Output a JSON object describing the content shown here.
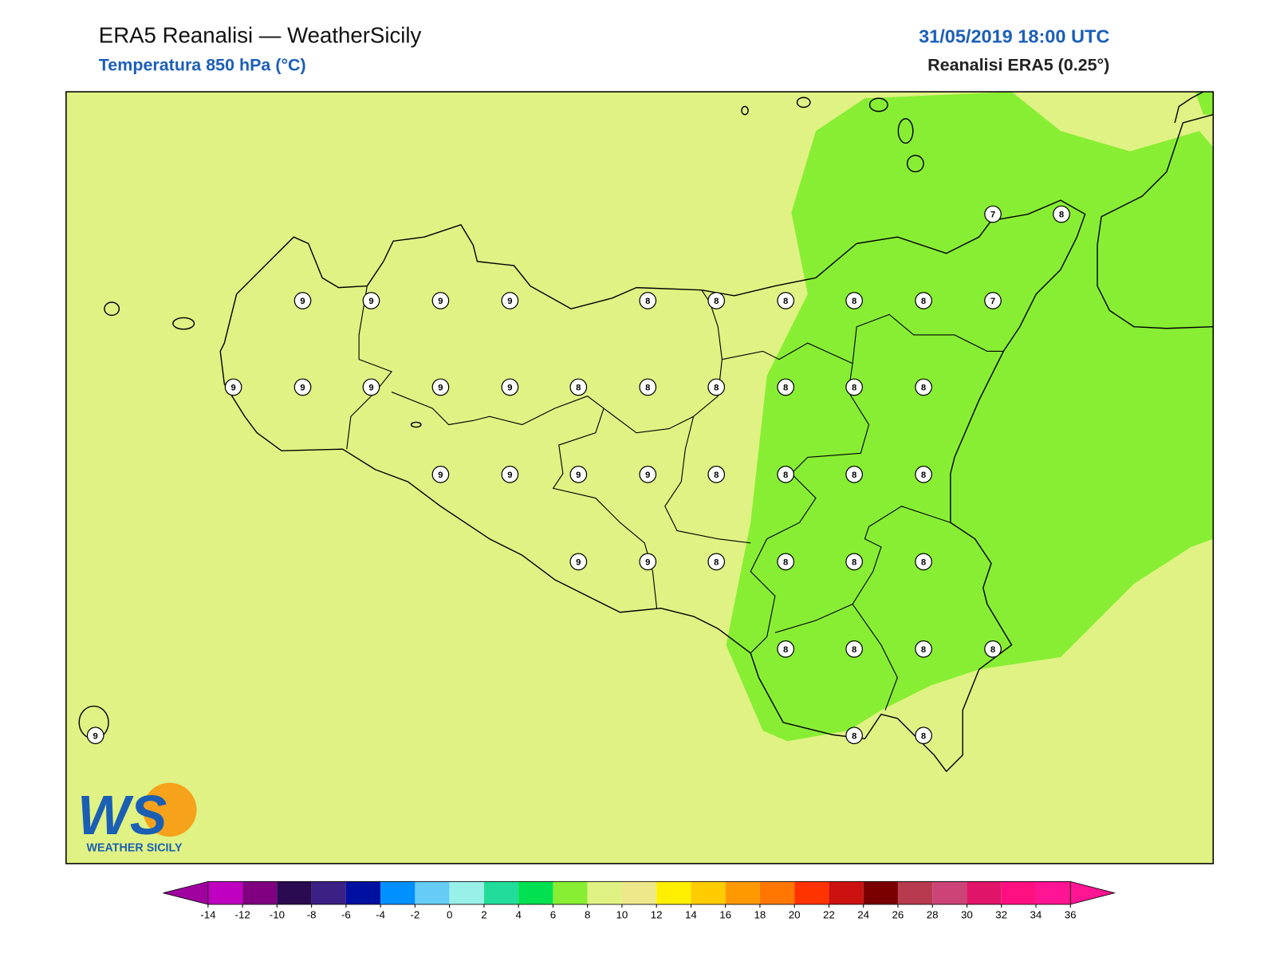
{
  "header": {
    "title": "ERA5 Reanalisi — WeatherSicily",
    "subtitle": "Temperatura 850 hPa (°C)",
    "datetime": "31/05/2019 18:00 UTC",
    "source": "Reanalisi ERA5 (0.25°)"
  },
  "map": {
    "background": "#e0f283",
    "region_fill": "#88ee33",
    "stations": [
      9,
      9,
      9,
      9,
      8,
      8,
      8,
      8,
      8,
      7,
      7,
      8,
      9,
      9,
      9,
      9,
      9,
      8,
      8,
      8,
      8,
      8,
      8,
      9,
      9,
      9,
      9,
      8,
      8,
      8,
      8,
      9,
      9,
      8,
      8,
      8,
      8,
      8,
      8,
      8,
      8,
      9,
      8,
      8
    ]
  },
  "logo": {
    "mark": "WS",
    "caption": "WEATHER SICILY"
  },
  "colorbar": {
    "ticks": [
      -14,
      -12,
      -10,
      -8,
      -6,
      -4,
      -2,
      0,
      2,
      4,
      6,
      8,
      10,
      12,
      14,
      16,
      18,
      20,
      22,
      24,
      26,
      28,
      30,
      32,
      34,
      36
    ],
    "colors": [
      "#c000c0",
      "#800080",
      "#2a0a50",
      "#3b2086",
      "#0010a0",
      "#0090ff",
      "#66ccf5",
      "#99f0e8",
      "#22dd99",
      "#00e050",
      "#88ee33",
      "#e0f283",
      "#eee88a",
      "#fff000",
      "#ffcc00",
      "#ff9900",
      "#ff7700",
      "#ff3300",
      "#cc1111",
      "#7a0000",
      "#b83a4e",
      "#cc4477",
      "#e0156a",
      "#ff0f80",
      "#ff1493"
    ],
    "under": "#a000a0",
    "over": "#ff1493"
  }
}
